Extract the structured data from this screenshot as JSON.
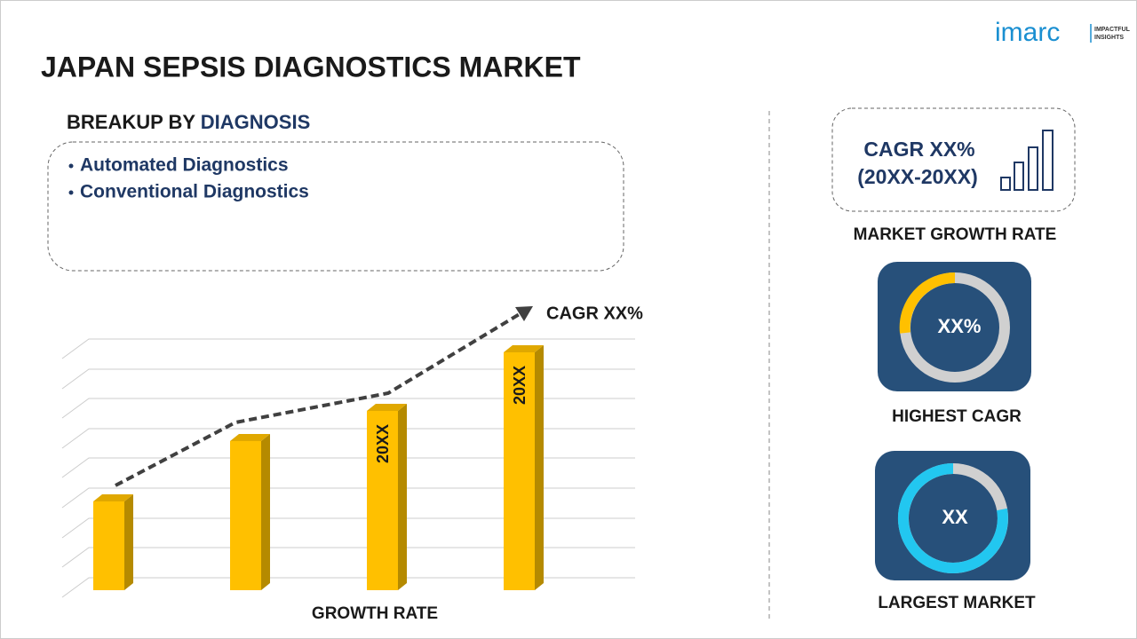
{
  "logo": {
    "brand": "imarc",
    "tagline_1": "IMPACTFUL",
    "tagline_2": "INSIGHTS"
  },
  "header": {
    "title": "JAPAN SEPSIS DIAGNOSTICS MARKET"
  },
  "breakup": {
    "label": "BREAKUP BY",
    "dimension": "DIAGNOSIS",
    "items": [
      "Automated Diagnostics",
      "Conventional Diagnostics"
    ]
  },
  "growth_chart": {
    "cagr_label": "CAGR XX%",
    "bar_labels": [
      "20XX",
      "20XX"
    ],
    "axis_label": "GROWTH RATE"
  },
  "market_growth": {
    "cagr": "CAGR XX%",
    "period": "(20XX-20XX)",
    "caption": "MARKET GROWTH RATE"
  },
  "highest_cagr": {
    "value": "XX%",
    "caption": "HIGHEST CAGR"
  },
  "largest_market": {
    "value": "XX",
    "caption": "LARGEST MARKET"
  }
}
